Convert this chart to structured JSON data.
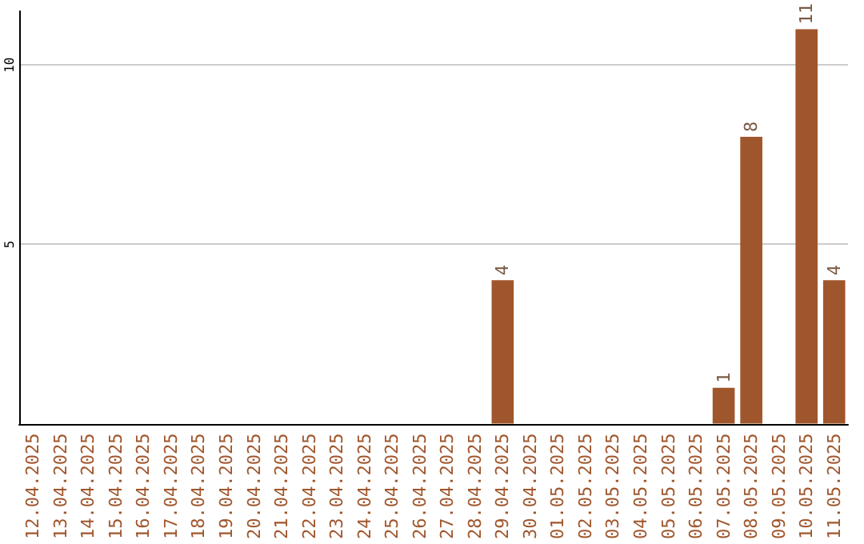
{
  "chart_data": {
    "type": "bar",
    "categories": [
      "12.04.2025",
      "13.04.2025",
      "14.04.2025",
      "15.04.2025",
      "16.04.2025",
      "17.04.2025",
      "18.04.2025",
      "19.04.2025",
      "20.04.2025",
      "21.04.2025",
      "22.04.2025",
      "23.04.2025",
      "24.04.2025",
      "25.04.2025",
      "26.04.2025",
      "27.04.2025",
      "28.04.2025",
      "29.04.2025",
      "30.04.2025",
      "01.05.2025",
      "02.05.2025",
      "03.05.2025",
      "04.05.2025",
      "05.05.2025",
      "06.05.2025",
      "07.05.2025",
      "08.05.2025",
      "09.05.2025",
      "10.05.2025",
      "11.05.2025"
    ],
    "values": [
      0,
      0,
      0,
      0,
      0,
      0,
      0,
      0,
      0,
      0,
      0,
      0,
      0,
      0,
      0,
      0,
      0,
      4,
      0,
      0,
      0,
      0,
      0,
      0,
      0,
      1,
      8,
      0,
      11,
      4
    ],
    "value_labels": [
      null,
      null,
      null,
      null,
      null,
      null,
      null,
      null,
      null,
      null,
      null,
      null,
      null,
      null,
      null,
      null,
      null,
      "4",
      null,
      null,
      null,
      null,
      null,
      null,
      null,
      "1",
      "8",
      null,
      "11",
      "4"
    ],
    "color": "#a0562c",
    "ylim": [
      0,
      11.5
    ],
    "yticks": [
      5,
      10
    ],
    "grid": "y"
  }
}
